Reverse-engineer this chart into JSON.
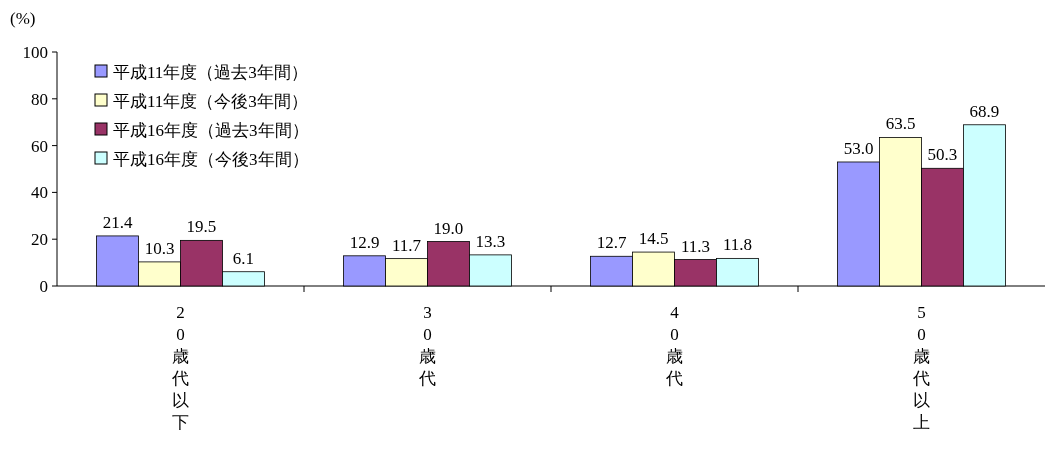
{
  "chart_data": {
    "type": "bar",
    "ylabel": "(%)",
    "categories": [
      "20歳代以下",
      "30歳代",
      "40歳代",
      "50歳代以上"
    ],
    "series": [
      {
        "name": "平成11年度（過去3年間）",
        "color": "#9999ff",
        "values": [
          21.4,
          12.9,
          12.7,
          53.0
        ],
        "value_labels": [
          "21.4",
          "12.9",
          "12.7",
          "53.0"
        ]
      },
      {
        "name": "平成11年度（今後3年間）",
        "color": "#ffffcc",
        "values": [
          10.3,
          11.7,
          14.5,
          63.5
        ],
        "value_labels": [
          "10.3",
          "11.7",
          "14.5",
          "63.5"
        ]
      },
      {
        "name": "平成16年度（過去3年間）",
        "color": "#993366",
        "values": [
          19.5,
          19.0,
          11.3,
          50.3
        ],
        "value_labels": [
          "19.5",
          "19.0",
          "11.3",
          "50.3"
        ]
      },
      {
        "name": "平成16年度（今後3年間）",
        "color": "#ccffff",
        "values": [
          6.1,
          13.3,
          11.8,
          68.9
        ],
        "value_labels": [
          "6.1",
          "13.3",
          "11.8",
          "68.9"
        ]
      }
    ],
    "ylim": [
      0,
      100
    ],
    "yticks": [
      0,
      20,
      40,
      60,
      80,
      100
    ],
    "legend": "top left",
    "grid": false
  }
}
